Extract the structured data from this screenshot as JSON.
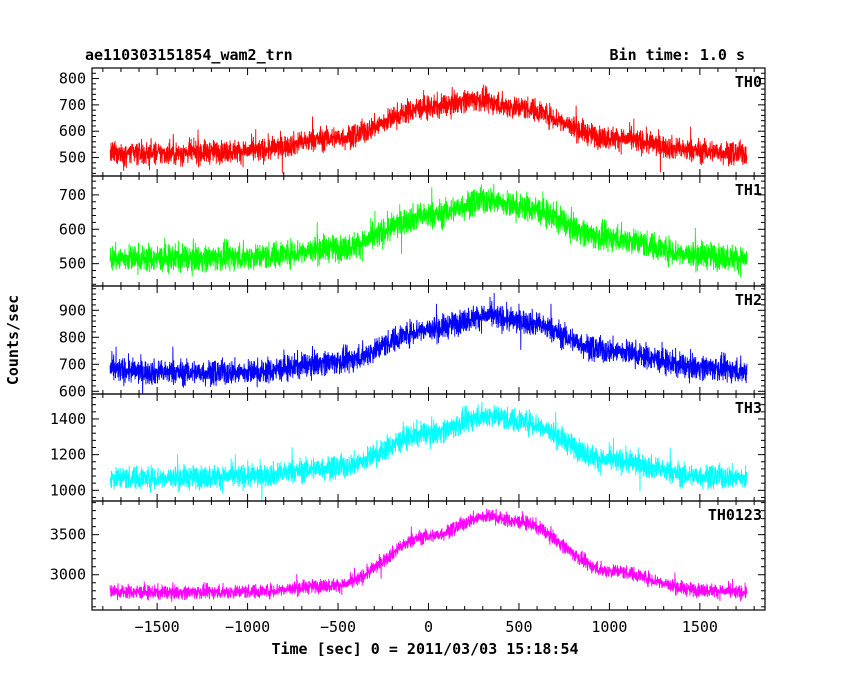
{
  "chart_data": {
    "type": "line",
    "title": "ae110303151854_wam2_trn",
    "subtitle": "Bin time: 1.0 s",
    "xlabel": "Time [sec] 0 = 2011/03/03 15:18:54",
    "ylabel": "Counts/sec",
    "xlim": [
      -1860,
      1860
    ],
    "x_range": [
      -1760,
      1760
    ],
    "x_ticks": [
      -1500,
      -1000,
      -500,
      0,
      500,
      1000,
      1500
    ],
    "x_tick_labels": [
      "−1500",
      "−1000",
      "−500",
      "0",
      "500",
      "1000",
      "1500"
    ],
    "grid": false,
    "panels": [
      {
        "name": "TH0",
        "color": "#ff0000",
        "ylim": [
          430,
          840
        ],
        "y_ticks": [
          500,
          600,
          700,
          800
        ],
        "y_tick_labels": [
          "500",
          "600",
          "700",
          "800"
        ],
        "baseline": 515,
        "peak": 720,
        "peak_time": 270,
        "noise": 40,
        "profile_t": [
          -1760,
          -1500,
          -1000,
          -500,
          0,
          250,
          500,
          1000,
          1500,
          1760
        ],
        "profile_v": [
          515,
          515,
          525,
          575,
          690,
          720,
          690,
          575,
          525,
          515
        ]
      },
      {
        "name": "TH1",
        "color": "#00ff00",
        "ylim": [
          435,
          755
        ],
        "y_ticks": [
          500,
          600,
          700
        ],
        "y_tick_labels": [
          "500",
          "600",
          "700"
        ],
        "baseline": 515,
        "peak": 685,
        "peak_time": 330,
        "noise": 36,
        "profile_t": [
          -1760,
          -1500,
          -1000,
          -500,
          0,
          330,
          500,
          1000,
          1500,
          1760
        ],
        "profile_v": [
          515,
          515,
          520,
          545,
          640,
          685,
          665,
          575,
          525,
          515
        ]
      },
      {
        "name": "TH2",
        "color": "#0000ff",
        "ylim": [
          590,
          990
        ],
        "y_ticks": [
          600,
          700,
          800,
          900
        ],
        "y_tick_labels": [
          "600",
          "700",
          "800",
          "900"
        ],
        "baseline": 670,
        "peak": 880,
        "peak_time": 330,
        "noise": 42,
        "profile_t": [
          -1760,
          -1500,
          -1000,
          -500,
          0,
          330,
          500,
          1000,
          1500,
          1760
        ],
        "profile_v": [
          680,
          670,
          670,
          710,
          830,
          880,
          860,
          750,
          690,
          675
        ]
      },
      {
        "name": "TH3",
        "color": "#00ffff",
        "ylim": [
          940,
          1540
        ],
        "y_ticks": [
          1000,
          1200,
          1400
        ],
        "y_tick_labels": [
          "1000",
          "1200",
          "1400"
        ],
        "baseline": 1070,
        "peak": 1420,
        "peak_time": 330,
        "noise": 60,
        "profile_t": [
          -1760,
          -1500,
          -1000,
          -500,
          0,
          330,
          500,
          1000,
          1500,
          1760
        ],
        "profile_v": [
          1070,
          1070,
          1080,
          1130,
          1320,
          1420,
          1390,
          1170,
          1080,
          1070
        ]
      },
      {
        "name": "TH0123",
        "color": "#ff00ff",
        "ylim": [
          2560,
          3920
        ],
        "y_ticks": [
          3000,
          3500
        ],
        "y_tick_labels": [
          "3000",
          "3500"
        ],
        "baseline": 2780,
        "peak": 3730,
        "peak_time": 330,
        "noise": 80,
        "profile_t": [
          -1760,
          -1500,
          -1000,
          -500,
          0,
          330,
          500,
          1000,
          1500,
          1760
        ],
        "profile_v": [
          2790,
          2780,
          2790,
          2870,
          3480,
          3730,
          3660,
          3050,
          2810,
          2780
        ]
      }
    ]
  }
}
